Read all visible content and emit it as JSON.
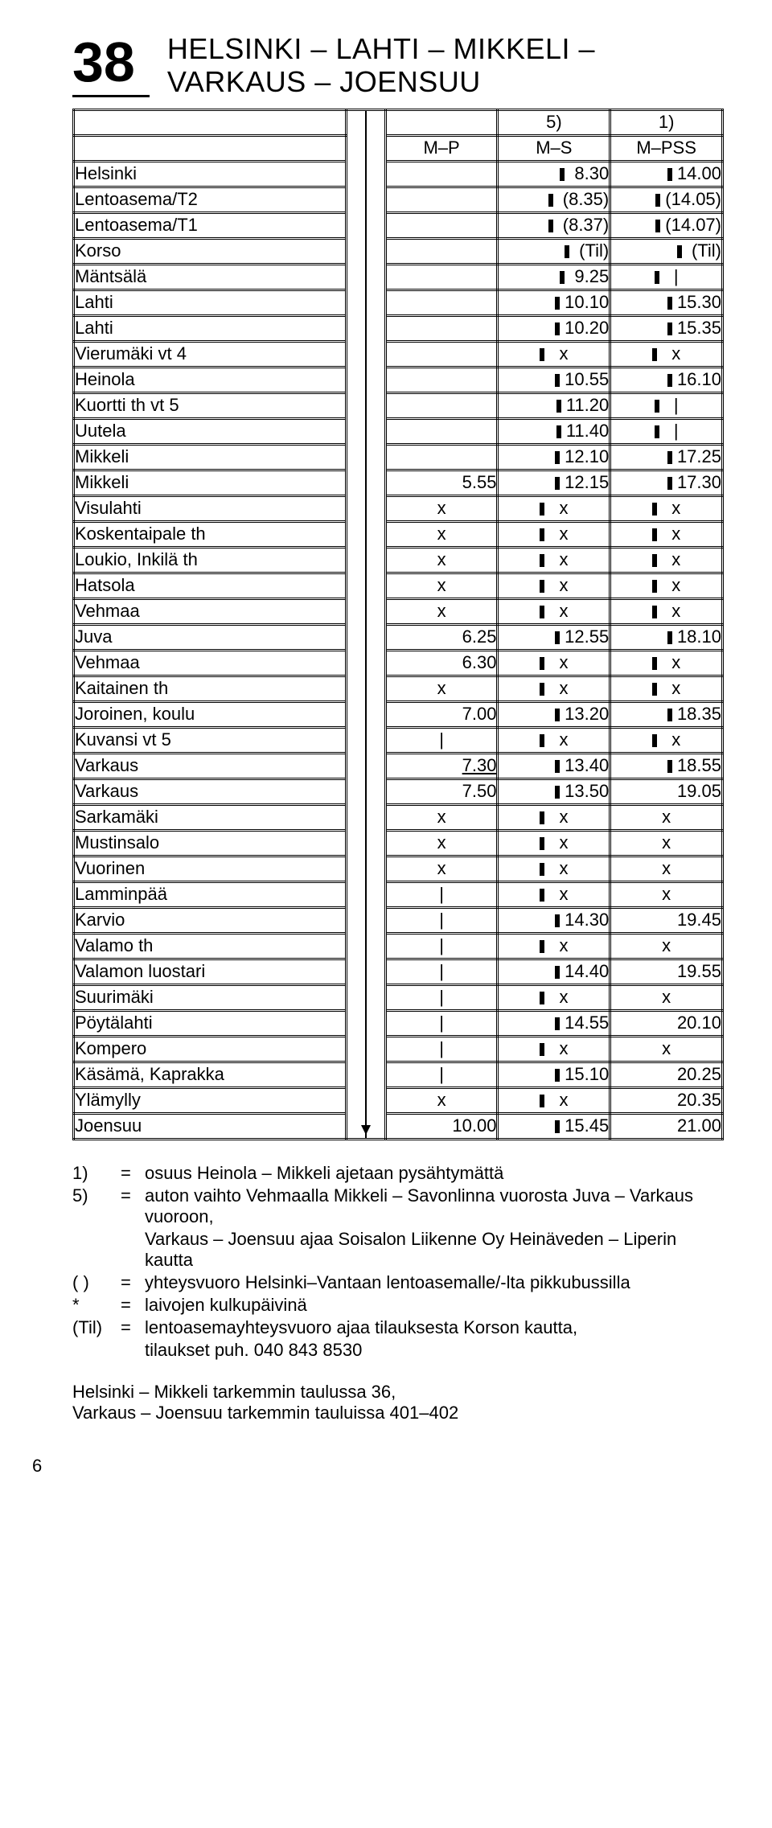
{
  "route": {
    "number": "38",
    "title_l1": "HELSINKI – LAHTI – MIKKELI –",
    "title_l2": "VARKAUS – JOENSUU"
  },
  "notes_row": [
    "",
    "5)",
    "1)"
  ],
  "days_row": [
    "M–P",
    "M–S",
    "M–PSS"
  ],
  "stops": [
    {
      "name": "Helsinki",
      "c": [
        "",
        "▮ 8.30",
        "▮14.00"
      ]
    },
    {
      "name": "Lentoasema/T2",
      "c": [
        "",
        "▮ (8.35)",
        "▮(14.05)"
      ]
    },
    {
      "name": "Lentoasema/T1",
      "c": [
        "",
        "▮ (8.37)",
        "▮(14.07)"
      ]
    },
    {
      "name": "Korso",
      "c": [
        "",
        "▮ (Til)",
        "▮ (Til)"
      ]
    },
    {
      "name": "Mäntsälä",
      "c": [
        "",
        "▮ 9.25",
        "▮  |"
      ]
    },
    {
      "name": "Lahti",
      "c": [
        "",
        "▮10.10",
        "▮15.30"
      ]
    },
    {
      "name": "Lahti",
      "c": [
        "",
        "▮10.20",
        "▮15.35"
      ]
    },
    {
      "name": "Vierumäki vt 4",
      "c": [
        "",
        "▮  x",
        "▮  x"
      ]
    },
    {
      "name": "Heinola",
      "c": [
        "",
        "▮10.55",
        "▮16.10"
      ]
    },
    {
      "name": "Kuortti th vt 5",
      "c": [
        "",
        "▮11.20",
        "▮  |"
      ]
    },
    {
      "name": "Uutela",
      "c": [
        "",
        "▮11.40",
        "▮  |"
      ]
    },
    {
      "name": "Mikkeli",
      "c": [
        "",
        "▮12.10",
        "▮17.25"
      ]
    },
    {
      "name": "Mikkeli",
      "c": [
        "5.55",
        "▮12.15",
        "▮17.30"
      ]
    },
    {
      "name": "Visulahti",
      "c": [
        "x",
        "▮  x",
        "▮  x"
      ]
    },
    {
      "name": "Koskentaipale th",
      "c": [
        "x",
        "▮  x",
        "▮  x"
      ]
    },
    {
      "name": "Loukio, Inkilä th",
      "c": [
        "x",
        "▮  x",
        "▮  x"
      ]
    },
    {
      "name": "Hatsola",
      "c": [
        "x",
        "▮  x",
        "▮  x"
      ]
    },
    {
      "name": "Vehmaa",
      "c": [
        "x",
        "▮  x",
        "▮  x"
      ]
    },
    {
      "name": "Juva",
      "c": [
        "6.25",
        "▮12.55",
        "▮18.10"
      ]
    },
    {
      "name": "Vehmaa",
      "c": [
        "6.30",
        "▮  x",
        "▮  x"
      ]
    },
    {
      "name": "Kaitainen th",
      "c": [
        "x",
        "▮  x",
        "▮  x"
      ]
    },
    {
      "name": "Joroinen, koulu",
      "c": [
        "7.00",
        "▮13.20",
        "▮18.35"
      ]
    },
    {
      "name": "Kuvansi vt 5",
      "c": [
        "|",
        "▮  x",
        "▮  x"
      ]
    },
    {
      "name": "Varkaus",
      "c": [
        "_7.30",
        "▮13.40",
        "▮18.55"
      ]
    },
    {
      "name": "Varkaus",
      "c": [
        "7.50",
        "▮13.50",
        "19.05"
      ]
    },
    {
      "name": "Sarkamäki",
      "c": [
        "x",
        "▮  x",
        "x"
      ]
    },
    {
      "name": "Mustinsalo",
      "c": [
        "x",
        "▮  x",
        "x"
      ]
    },
    {
      "name": "Vuorinen",
      "c": [
        "x",
        "▮  x",
        "x"
      ]
    },
    {
      "name": "Lamminpää",
      "c": [
        "|",
        "▮  x",
        "x"
      ]
    },
    {
      "name": "Karvio",
      "c": [
        "|",
        "▮14.30",
        "19.45"
      ]
    },
    {
      "name": "Valamo th",
      "c": [
        "|",
        "▮  x",
        "x"
      ]
    },
    {
      "name": "Valamon luostari",
      "c": [
        "|",
        "▮14.40",
        "19.55"
      ]
    },
    {
      "name": "Suurimäki",
      "c": [
        "|",
        "▮  x",
        "x"
      ]
    },
    {
      "name": "Pöytälahti",
      "c": [
        "|",
        "▮14.55",
        "20.10"
      ]
    },
    {
      "name": "Kompero",
      "c": [
        "|",
        "▮  x",
        "x"
      ]
    },
    {
      "name": "Käsämä, Kaprakka",
      "c": [
        "|",
        "▮15.10",
        "20.25"
      ]
    },
    {
      "name": "Ylämylly",
      "c": [
        "x",
        "▮  x",
        "20.35"
      ]
    },
    {
      "name": "Joensuu",
      "c": [
        "10.00",
        "▮15.45",
        "21.00"
      ]
    }
  ],
  "legend": [
    {
      "k": "1)",
      "e": "=",
      "v": "osuus Heinola – Mikkeli ajetaan pysähtymättä"
    },
    {
      "k": "5)",
      "e": "=",
      "v": "auton vaihto Vehmaalla Mikkeli – Savonlinna vuorosta Juva – Varkaus vuoroon,"
    },
    {
      "k": "",
      "e": "",
      "v": "Varkaus – Joensuu ajaa Soisalon Liikenne Oy Heinäveden – Liperin kautta"
    },
    {
      "k": "( )",
      "e": "=",
      "v": "yhteysvuoro Helsinki–Vantaan lentoasemalle/-lta pikkubussilla"
    },
    {
      "k": "*",
      "e": "=",
      "v": "laivojen kulkupäivinä"
    },
    {
      "k": "(Til)",
      "e": "=",
      "v": "lentoasemayhteysvuoro ajaa tilauksesta Korson kautta,"
    },
    {
      "k": "",
      "e": "",
      "v": "tilaukset puh. 040 843 8530"
    }
  ],
  "refs": [
    "Helsinki – Mikkeli tarkemmin taulussa 36,",
    "Varkaus – Joensuu tarkemmin tauluissa 401–402"
  ],
  "page_number": "6"
}
